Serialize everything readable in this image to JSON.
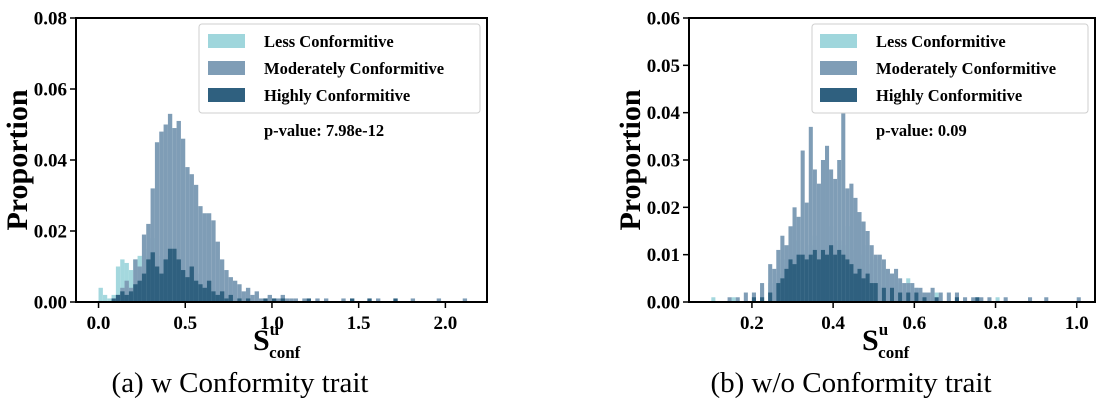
{
  "colors": {
    "less": "#9fd6dc",
    "moderate": "#7f9db6",
    "high": "#2f607f"
  },
  "chart_data": [
    {
      "type": "histogram",
      "caption": "(a) w Conformity trait",
      "ylabel": "Proportion",
      "xlabel_main": "S",
      "xlabel_sup": "u",
      "xlabel_sub": "conf",
      "annotation": "p-value: 7.98e-12",
      "xlim": [
        -0.13,
        2.24
      ],
      "ylim": [
        0,
        0.08
      ],
      "xticks": [
        0.0,
        0.5,
        1.0,
        1.5,
        2.0
      ],
      "xtick_labels": [
        "0.0",
        "0.5",
        "1.0",
        "1.5",
        "2.0"
      ],
      "yticks": [
        0.0,
        0.02,
        0.04,
        0.06,
        0.08
      ],
      "ytick_labels": [
        "0.00",
        "0.02",
        "0.04",
        "0.06",
        "0.08"
      ],
      "legend_position": "top-right",
      "bin_width": 0.025,
      "series": [
        {
          "name": "Less Conformitive",
          "color_key": "less",
          "bins": [
            [
              0.0,
              0.004
            ],
            [
              0.025,
              0.002
            ],
            [
              0.05,
              0.001
            ],
            [
              0.075,
              0.002
            ],
            [
              0.1,
              0.01
            ],
            [
              0.125,
              0.012
            ],
            [
              0.15,
              0.011
            ],
            [
              0.175,
              0.009
            ],
            [
              0.2,
              0.012
            ],
            [
              0.225,
              0.013
            ],
            [
              0.25,
              0.013
            ],
            [
              0.275,
              0.015
            ],
            [
              0.3,
              0.018
            ],
            [
              0.325,
              0.012
            ],
            [
              0.35,
              0.013
            ],
            [
              0.375,
              0.011
            ],
            [
              0.4,
              0.012
            ],
            [
              0.425,
              0.009
            ],
            [
              0.45,
              0.01
            ],
            [
              0.475,
              0.009
            ],
            [
              0.5,
              0.007
            ],
            [
              0.525,
              0.007
            ],
            [
              0.55,
              0.008
            ],
            [
              0.575,
              0.005
            ],
            [
              0.6,
              0.004
            ],
            [
              0.625,
              0.003
            ],
            [
              0.65,
              0.004
            ],
            [
              0.675,
              0.002
            ],
            [
              0.7,
              0.001
            ]
          ]
        },
        {
          "name": "Moderately Conformitive",
          "color_key": "moderate",
          "bins": [
            [
              0.1,
              0.002
            ],
            [
              0.125,
              0.004
            ],
            [
              0.15,
              0.006
            ],
            [
              0.175,
              0.004
            ],
            [
              0.2,
              0.012
            ],
            [
              0.225,
              0.01
            ],
            [
              0.25,
              0.019
            ],
            [
              0.275,
              0.022
            ],
            [
              0.3,
              0.032
            ],
            [
              0.325,
              0.045
            ],
            [
              0.35,
              0.048
            ],
            [
              0.375,
              0.05
            ],
            [
              0.4,
              0.053
            ],
            [
              0.425,
              0.049
            ],
            [
              0.45,
              0.051
            ],
            [
              0.475,
              0.046
            ],
            [
              0.5,
              0.038
            ],
            [
              0.525,
              0.036
            ],
            [
              0.55,
              0.033
            ],
            [
              0.575,
              0.027
            ],
            [
              0.6,
              0.025
            ],
            [
              0.625,
              0.025
            ],
            [
              0.65,
              0.023
            ],
            [
              0.675,
              0.017
            ],
            [
              0.7,
              0.012
            ],
            [
              0.725,
              0.009
            ],
            [
              0.75,
              0.007
            ],
            [
              0.775,
              0.006
            ],
            [
              0.8,
              0.005
            ],
            [
              0.825,
              0.003
            ],
            [
              0.85,
              0.004
            ],
            [
              0.875,
              0.002
            ],
            [
              0.9,
              0.003
            ],
            [
              0.925,
              0.001
            ],
            [
              0.95,
              0.001
            ],
            [
              0.975,
              0.002
            ],
            [
              1.0,
              0.001
            ],
            [
              1.025,
              0.001
            ],
            [
              1.05,
              0.002
            ],
            [
              1.075,
              0.001
            ],
            [
              1.1,
              0.001
            ],
            [
              1.125,
              0.001
            ],
            [
              1.175,
              0.001
            ],
            [
              1.25,
              0.001
            ],
            [
              1.3,
              0.001
            ],
            [
              1.4,
              0.001
            ],
            [
              1.6,
              0.001
            ],
            [
              1.8,
              0.001
            ],
            [
              1.95,
              0.001
            ],
            [
              2.1,
              0.001
            ]
          ]
        },
        {
          "name": "Highly Conformitive",
          "color_key": "high",
          "bins": [
            [
              0.075,
              0.001
            ],
            [
              0.1,
              0.002
            ],
            [
              0.125,
              0.003
            ],
            [
              0.15,
              0.002
            ],
            [
              0.175,
              0.003
            ],
            [
              0.2,
              0.005
            ],
            [
              0.225,
              0.006
            ],
            [
              0.25,
              0.008
            ],
            [
              0.275,
              0.012
            ],
            [
              0.3,
              0.014
            ],
            [
              0.325,
              0.01
            ],
            [
              0.35,
              0.008
            ],
            [
              0.375,
              0.012
            ],
            [
              0.4,
              0.015
            ],
            [
              0.425,
              0.015
            ],
            [
              0.45,
              0.012
            ],
            [
              0.475,
              0.009
            ],
            [
              0.5,
              0.007
            ],
            [
              0.525,
              0.01
            ],
            [
              0.55,
              0.006
            ],
            [
              0.575,
              0.005
            ],
            [
              0.6,
              0.004
            ],
            [
              0.625,
              0.006
            ],
            [
              0.65,
              0.003
            ],
            [
              0.675,
              0.002
            ],
            [
              0.7,
              0.003
            ],
            [
              0.725,
              0.001
            ],
            [
              0.75,
              0.002
            ],
            [
              0.8,
              0.001
            ],
            [
              0.85,
              0.001
            ],
            [
              0.95,
              0.001
            ],
            [
              1.0,
              0.001
            ],
            [
              1.05,
              0.001
            ],
            [
              1.2,
              0.001
            ],
            [
              1.45,
              0.001
            ],
            [
              1.55,
              0.001
            ],
            [
              1.7,
              0.001
            ]
          ]
        }
      ]
    },
    {
      "type": "histogram",
      "caption": "(b) w/o Conformity trait",
      "ylabel": "Proportion",
      "xlabel_main": "S",
      "xlabel_sup": "u",
      "xlabel_sub": "conf",
      "annotation": "p-value: 0.09",
      "xlim": [
        0.045,
        1.045
      ],
      "ylim": [
        0,
        0.06
      ],
      "xticks": [
        0.2,
        0.4,
        0.6,
        0.8,
        1.0
      ],
      "xtick_labels": [
        "0.2",
        "0.4",
        "0.6",
        "0.8",
        "1.0"
      ],
      "yticks": [
        0.0,
        0.01,
        0.02,
        0.03,
        0.04,
        0.05,
        0.06
      ],
      "ytick_labels": [
        "0.00",
        "0.01",
        "0.02",
        "0.03",
        "0.04",
        "0.05",
        "0.06"
      ],
      "legend_position": "top-right",
      "bin_width": 0.01,
      "series": [
        {
          "name": "Less Conformitive",
          "color_key": "less",
          "bins": [
            [
              0.1,
              0.001
            ],
            [
              0.15,
              0.001
            ],
            [
              0.2,
              0.002
            ],
            [
              0.22,
              0.003
            ],
            [
              0.24,
              0.004
            ],
            [
              0.26,
              0.006
            ],
            [
              0.27,
              0.009
            ],
            [
              0.28,
              0.008
            ],
            [
              0.29,
              0.012
            ],
            [
              0.3,
              0.01
            ],
            [
              0.31,
              0.013
            ],
            [
              0.32,
              0.01
            ],
            [
              0.33,
              0.011
            ],
            [
              0.34,
              0.012
            ],
            [
              0.35,
              0.014
            ],
            [
              0.36,
              0.01
            ],
            [
              0.37,
              0.015
            ],
            [
              0.38,
              0.012
            ],
            [
              0.39,
              0.016
            ],
            [
              0.4,
              0.011
            ],
            [
              0.41,
              0.013
            ],
            [
              0.42,
              0.012
            ],
            [
              0.43,
              0.016
            ],
            [
              0.44,
              0.011
            ],
            [
              0.45,
              0.009
            ],
            [
              0.46,
              0.013
            ],
            [
              0.47,
              0.01
            ],
            [
              0.48,
              0.012
            ],
            [
              0.49,
              0.008
            ],
            [
              0.5,
              0.009
            ],
            [
              0.52,
              0.007
            ],
            [
              0.54,
              0.006
            ],
            [
              0.56,
              0.004
            ],
            [
              0.58,
              0.005
            ],
            [
              0.6,
              0.003
            ],
            [
              0.62,
              0.002
            ],
            [
              0.65,
              0.002
            ],
            [
              0.7,
              0.001
            ],
            [
              0.75,
              0.001
            ],
            [
              0.8,
              0.001
            ]
          ]
        },
        {
          "name": "Moderately Conformitive",
          "color_key": "moderate",
          "bins": [
            [
              0.14,
              0.001
            ],
            [
              0.16,
              0.001
            ],
            [
              0.18,
              0.002
            ],
            [
              0.2,
              0.002
            ],
            [
              0.22,
              0.004
            ],
            [
              0.24,
              0.008
            ],
            [
              0.25,
              0.007
            ],
            [
              0.26,
              0.011
            ],
            [
              0.27,
              0.014
            ],
            [
              0.28,
              0.012
            ],
            [
              0.29,
              0.016
            ],
            [
              0.3,
              0.02
            ],
            [
              0.31,
              0.018
            ],
            [
              0.32,
              0.032
            ],
            [
              0.33,
              0.021
            ],
            [
              0.34,
              0.037
            ],
            [
              0.35,
              0.028
            ],
            [
              0.36,
              0.025
            ],
            [
              0.37,
              0.03
            ],
            [
              0.38,
              0.033
            ],
            [
              0.39,
              0.028
            ],
            [
              0.4,
              0.026
            ],
            [
              0.41,
              0.03
            ],
            [
              0.42,
              0.041
            ],
            [
              0.43,
              0.024
            ],
            [
              0.44,
              0.025
            ],
            [
              0.45,
              0.022
            ],
            [
              0.46,
              0.019
            ],
            [
              0.47,
              0.017
            ],
            [
              0.48,
              0.015
            ],
            [
              0.49,
              0.012
            ],
            [
              0.5,
              0.01
            ],
            [
              0.51,
              0.01
            ],
            [
              0.52,
              0.009
            ],
            [
              0.53,
              0.007
            ],
            [
              0.54,
              0.006
            ],
            [
              0.55,
              0.007
            ],
            [
              0.56,
              0.005
            ],
            [
              0.57,
              0.004
            ],
            [
              0.58,
              0.004
            ],
            [
              0.59,
              0.004
            ],
            [
              0.6,
              0.003
            ],
            [
              0.61,
              0.003
            ],
            [
              0.62,
              0.002
            ],
            [
              0.63,
              0.002
            ],
            [
              0.64,
              0.003
            ],
            [
              0.66,
              0.002
            ],
            [
              0.68,
              0.002
            ],
            [
              0.7,
              0.002
            ],
            [
              0.72,
              0.001
            ],
            [
              0.74,
              0.001
            ],
            [
              0.76,
              0.001
            ],
            [
              0.78,
              0.001
            ],
            [
              0.82,
              0.001
            ],
            [
              0.88,
              0.001
            ],
            [
              0.92,
              0.001
            ],
            [
              1.0,
              0.001
            ]
          ]
        },
        {
          "name": "Highly Conformitive",
          "color_key": "high",
          "bins": [
            [
              0.2,
              0.001
            ],
            [
              0.22,
              0.001
            ],
            [
              0.24,
              0.002
            ],
            [
              0.26,
              0.004
            ],
            [
              0.27,
              0.005
            ],
            [
              0.28,
              0.007
            ],
            [
              0.29,
              0.009
            ],
            [
              0.3,
              0.008
            ],
            [
              0.31,
              0.01
            ],
            [
              0.32,
              0.01
            ],
            [
              0.33,
              0.009
            ],
            [
              0.34,
              0.01
            ],
            [
              0.35,
              0.011
            ],
            [
              0.36,
              0.009
            ],
            [
              0.37,
              0.011
            ],
            [
              0.38,
              0.01
            ],
            [
              0.39,
              0.012
            ],
            [
              0.4,
              0.01
            ],
            [
              0.41,
              0.011
            ],
            [
              0.42,
              0.01
            ],
            [
              0.43,
              0.009
            ],
            [
              0.44,
              0.008
            ],
            [
              0.45,
              0.006
            ],
            [
              0.46,
              0.007
            ],
            [
              0.47,
              0.005
            ],
            [
              0.48,
              0.006
            ],
            [
              0.49,
              0.004
            ],
            [
              0.5,
              0.004
            ],
            [
              0.52,
              0.003
            ],
            [
              0.54,
              0.003
            ],
            [
              0.56,
              0.002
            ],
            [
              0.58,
              0.002
            ],
            [
              0.6,
              0.002
            ],
            [
              0.62,
              0.001
            ],
            [
              0.65,
              0.001
            ],
            [
              0.7,
              0.001
            ],
            [
              0.75,
              0.001
            ]
          ]
        }
      ]
    }
  ]
}
